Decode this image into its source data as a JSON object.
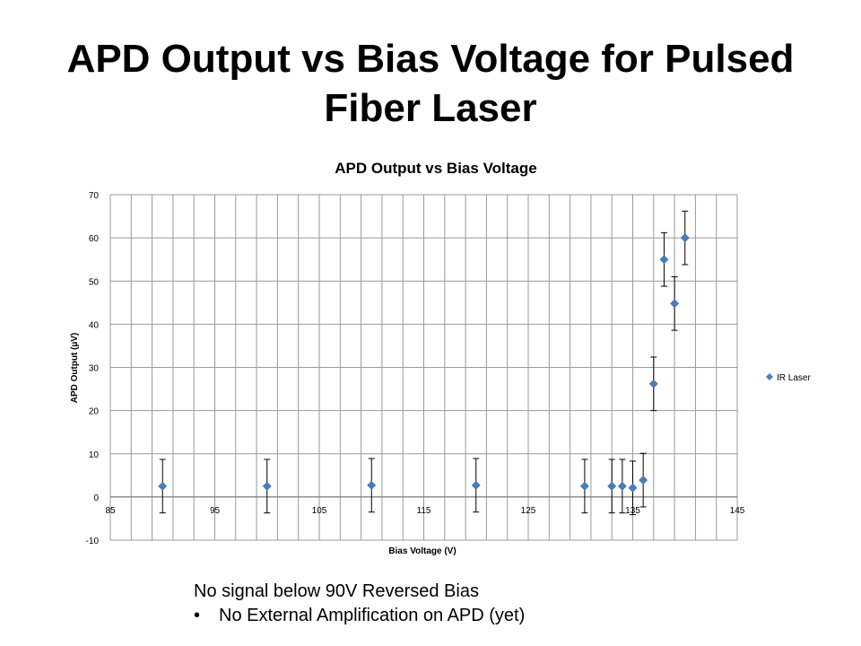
{
  "slide": {
    "title_line1": "APD Output vs Bias Voltage for Pulsed",
    "title_line2": "Fiber Laser",
    "notes": [
      "No signal below 90V Reversed Bias",
      "No External Amplification on APD (yet)"
    ]
  },
  "chart_data": {
    "type": "scatter",
    "title": "APD Output vs Bias Voltage",
    "xlabel": "Bias Voltage (V)",
    "ylabel": "APD Output (µV)",
    "xlim": [
      85,
      145
    ],
    "ylim": [
      -10,
      70
    ],
    "x_ticks": [
      85,
      95,
      105,
      115,
      125,
      135,
      145
    ],
    "y_ticks": [
      -10,
      0,
      10,
      20,
      30,
      40,
      50,
      60,
      70
    ],
    "x_minor_step": 2,
    "grid": true,
    "legend_position": "right",
    "series": [
      {
        "name": "IR Laser",
        "color": "#4a7ebb",
        "marker": "diamond",
        "points": [
          {
            "x": 90,
            "y": 2.5,
            "err": 6.2
          },
          {
            "x": 100,
            "y": 2.5,
            "err": 6.2
          },
          {
            "x": 110,
            "y": 2.7,
            "err": 6.2
          },
          {
            "x": 120,
            "y": 2.7,
            "err": 6.2
          },
          {
            "x": 130.4,
            "y": 2.5,
            "err": 6.2
          },
          {
            "x": 133,
            "y": 2.5,
            "err": 6.2
          },
          {
            "x": 134,
            "y": 2.5,
            "err": 6.2
          },
          {
            "x": 135,
            "y": 2.1,
            "err": 6.2
          },
          {
            "x": 136,
            "y": 3.9,
            "err": 6.2
          },
          {
            "x": 137,
            "y": 26.2,
            "err": 6.2
          },
          {
            "x": 138,
            "y": 55,
            "err": 6.2
          },
          {
            "x": 139,
            "y": 44.8,
            "err": 6.2
          },
          {
            "x": 140,
            "y": 60,
            "err": 6.2
          }
        ]
      }
    ]
  }
}
